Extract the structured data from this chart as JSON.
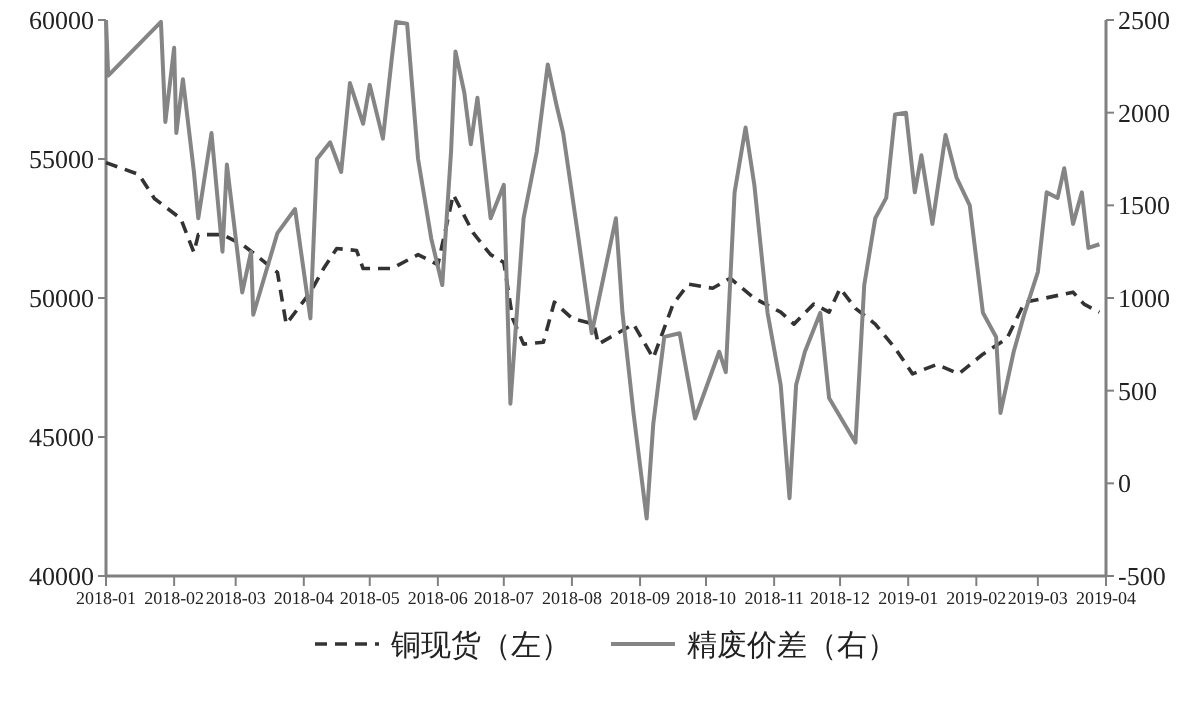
{
  "chart_data": {
    "type": "line",
    "xlim": [
      "2018-01-01",
      "2019-04-01"
    ],
    "xticks": [
      "2018-01",
      "2018-02",
      "2018-03",
      "2018-04",
      "2018-05",
      "2018-06",
      "2018-07",
      "2018-08",
      "2018-09",
      "2018-10",
      "2018-11",
      "2018-12",
      "2019-01",
      "2019-02",
      "2019-03",
      "2019-04"
    ],
    "ylim": [
      40000,
      60000
    ],
    "yticks": [
      40000,
      45000,
      50000,
      55000,
      60000
    ],
    "y2lim": [
      -500,
      2500
    ],
    "y2ticks": [
      -500,
      0,
      500,
      1000,
      1500,
      2000,
      2500
    ],
    "legend": "bottom",
    "series": [
      {
        "name": "铜现货（左）",
        "color": "#333333",
        "line_style": "dashed",
        "x": [
          "2018-01-01",
          "2018-01-16",
          "2018-01-23",
          "2018-02-04",
          "2018-02-10",
          "2018-02-12",
          "2018-02-23",
          "2018-03-04",
          "2018-03-10",
          "2018-03-20",
          "2018-03-24",
          "2018-04-04",
          "2018-04-10",
          "2018-04-16",
          "2018-04-25",
          "2018-04-28",
          "2018-05-11",
          "2018-05-23",
          "2018-06-01",
          "2018-06-08",
          "2018-06-17",
          "2018-06-25",
          "2018-07-01",
          "2018-07-05",
          "2018-07-10",
          "2018-07-19",
          "2018-07-24",
          "2018-08-01",
          "2018-08-11",
          "2018-08-13",
          "2018-08-29",
          "2018-09-07",
          "2018-09-16",
          "2018-09-23",
          "2018-10-04",
          "2018-10-12",
          "2018-10-23",
          "2018-11-04",
          "2018-11-10",
          "2018-11-19",
          "2018-11-26",
          "2018-12-01",
          "2018-12-08",
          "2018-12-17",
          "2018-12-26",
          "2019-01-03",
          "2019-01-14",
          "2019-01-24",
          "2019-02-04",
          "2019-02-15",
          "2019-02-23",
          "2019-03-04",
          "2019-03-17",
          "2019-03-22",
          "2019-03-29"
        ],
        "values": [
          54870,
          54440,
          53580,
          52860,
          51640,
          52280,
          52280,
          51920,
          51560,
          50920,
          49060,
          50210,
          51060,
          51780,
          51710,
          51060,
          51060,
          51560,
          51200,
          53720,
          52350,
          51560,
          51280,
          49270,
          48340,
          48410,
          49850,
          49270,
          49060,
          48340,
          49060,
          47840,
          49780,
          50500,
          50350,
          50710,
          49990,
          49490,
          49060,
          49780,
          49490,
          50350,
          49630,
          49060,
          48200,
          47270,
          47610,
          47270,
          47980,
          48550,
          49850,
          49990,
          50210,
          49780,
          49490
        ]
      },
      {
        "name": "精废价差（右）",
        "color": "#858585",
        "line_style": "solid",
        "axis": "y2",
        "x": [
          "2018-01-01",
          "2018-01-02",
          "2018-01-26",
          "2018-01-28",
          "2018-02-01",
          "2018-02-02",
          "2018-02-05",
          "2018-02-10",
          "2018-02-12",
          "2018-02-18",
          "2018-02-23",
          "2018-02-25",
          "2018-03-04",
          "2018-03-08",
          "2018-03-09",
          "2018-03-20",
          "2018-03-28",
          "2018-04-04",
          "2018-04-07",
          "2018-04-13",
          "2018-04-18",
          "2018-04-22",
          "2018-04-28",
          "2018-05-01",
          "2018-05-07",
          "2018-05-11",
          "2018-05-13",
          "2018-05-18",
          "2018-05-23",
          "2018-05-29",
          "2018-06-03",
          "2018-06-07",
          "2018-06-09",
          "2018-06-13",
          "2018-06-16",
          "2018-06-19",
          "2018-06-25",
          "2018-07-01",
          "2018-07-04",
          "2018-07-10",
          "2018-07-16",
          "2018-07-21",
          "2018-07-25",
          "2018-07-28",
          "2018-08-04",
          "2018-08-10",
          "2018-08-21",
          "2018-08-24",
          "2018-08-29",
          "2018-09-04",
          "2018-09-07",
          "2018-09-12",
          "2018-09-19",
          "2018-09-26",
          "2018-10-07",
          "2018-10-10",
          "2018-10-14",
          "2018-10-19",
          "2018-10-23",
          "2018-10-29",
          "2018-11-04",
          "2018-11-08",
          "2018-11-11",
          "2018-11-15",
          "2018-11-22",
          "2018-11-26",
          "2018-12-03",
          "2018-12-08",
          "2018-12-12",
          "2018-12-17",
          "2018-12-22",
          "2018-12-26",
          "2018-12-31",
          "2019-01-04",
          "2019-01-07",
          "2019-01-12",
          "2019-01-18",
          "2019-01-23",
          "2019-01-29",
          "2019-02-04",
          "2019-02-10",
          "2019-02-12",
          "2019-02-18",
          "2019-02-23",
          "2019-03-01",
          "2019-03-05",
          "2019-03-10",
          "2019-03-13",
          "2019-03-17",
          "2019-03-21",
          "2019-03-24",
          "2019-03-29"
        ],
        "values": [
          2500,
          2200,
          2490,
          1950,
          2350,
          1890,
          2180,
          1680,
          1430,
          1890,
          1250,
          1720,
          1030,
          1250,
          910,
          1350,
          1480,
          890,
          1750,
          1840,
          1680,
          2160,
          1940,
          2150,
          1860,
          2290,
          2490,
          2480,
          1750,
          1320,
          1070,
          1790,
          2330,
          2110,
          1830,
          2080,
          1430,
          1610,
          430,
          1430,
          1790,
          2260,
          2040,
          1890,
          1320,
          810,
          1430,
          920,
          380,
          -190,
          320,
          790,
          810,
          350,
          710,
          600,
          1570,
          1920,
          1610,
          920,
          530,
          -80,
          530,
          710,
          920,
          460,
          320,
          220,
          1070,
          1430,
          1540,
          1990,
          2000,
          1570,
          1770,
          1400,
          1880,
          1650,
          1500,
          920,
          790,
          380,
          710,
          920,
          1140,
          1570,
          1540,
          1700,
          1400,
          1570,
          1270,
          1290
        ]
      }
    ]
  }
}
